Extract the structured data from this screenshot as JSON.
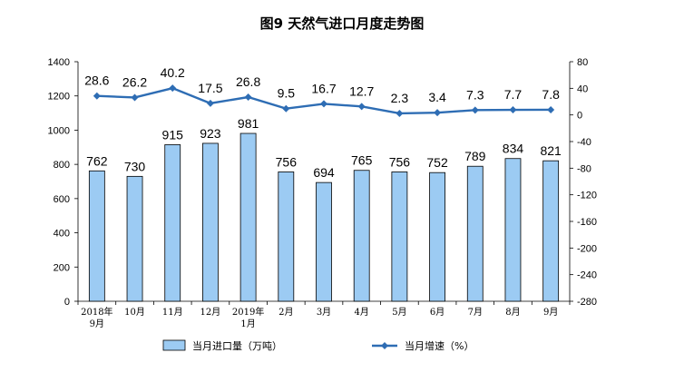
{
  "chart_data": {
    "type": "bar",
    "title": "图9  天然气进口月度走势图",
    "categories": [
      [
        "2018年",
        "9月"
      ],
      [
        "10月"
      ],
      [
        "11月"
      ],
      [
        "12月"
      ],
      [
        "2019年",
        "1月"
      ],
      [
        "2月"
      ],
      [
        "3月"
      ],
      [
        "4月"
      ],
      [
        "5月"
      ],
      [
        "6月"
      ],
      [
        "7月"
      ],
      [
        "8月"
      ],
      [
        "9月"
      ]
    ],
    "series": [
      {
        "name": "当月进口量（万吨）",
        "type": "bar",
        "axis": "left",
        "color": "#9ccbf3",
        "values": [
          762,
          730,
          915,
          923,
          981,
          756,
          694,
          765,
          756,
          752,
          789,
          834,
          821
        ]
      },
      {
        "name": "当月增速（%）",
        "type": "line",
        "axis": "right",
        "color": "#2e6db4",
        "values": [
          28.6,
          26.2,
          40.2,
          17.5,
          26.8,
          9.5,
          16.7,
          12.7,
          2.3,
          3.4,
          7.3,
          7.7,
          7.8
        ]
      }
    ],
    "y_left": {
      "min": 0,
      "max": 1400,
      "step": 200
    },
    "y_right": {
      "min": -280,
      "max": 80,
      "step": 40
    },
    "grid": false,
    "legend_position": "bottom"
  }
}
